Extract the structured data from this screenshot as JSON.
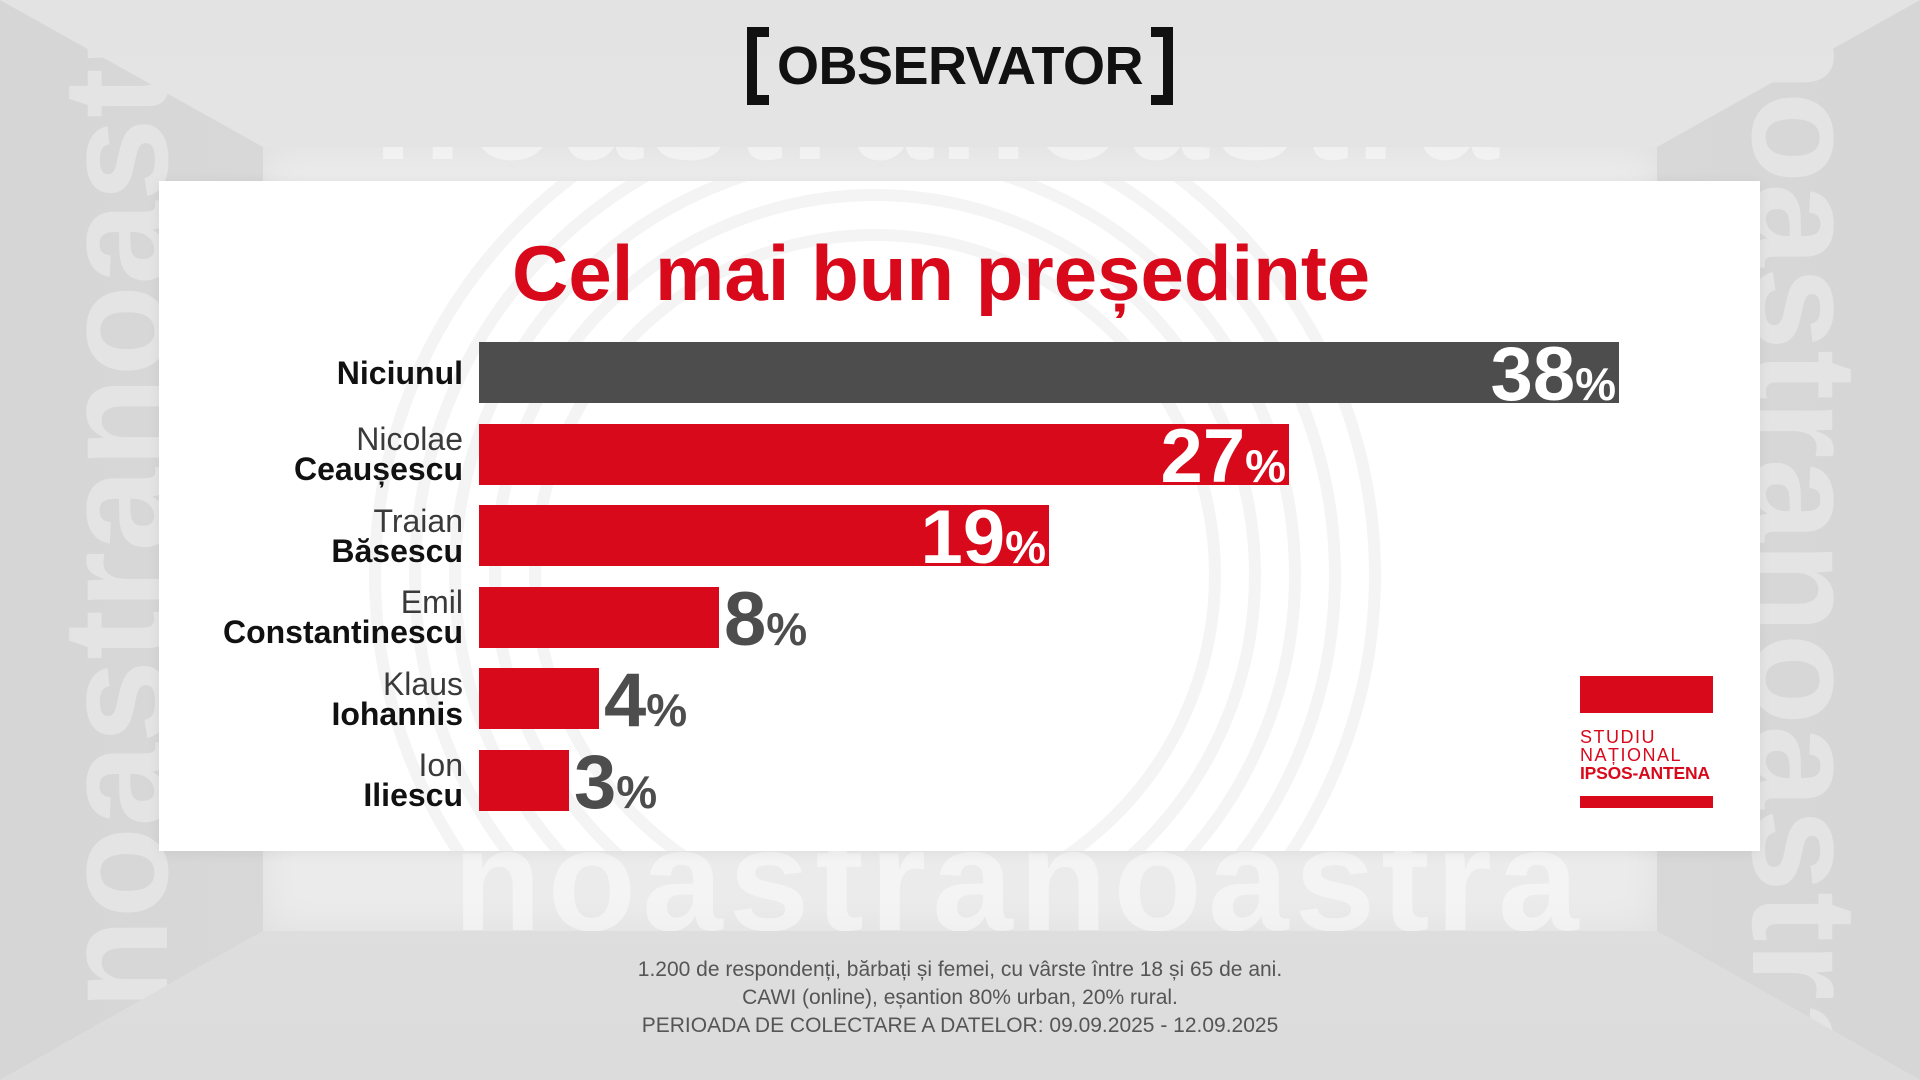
{
  "header": {
    "logo": "OBSERVATOR"
  },
  "watermark": "noastra",
  "chart_data": {
    "type": "bar",
    "orientation": "horizontal",
    "title": "Cel mai bun președinte",
    "categories": [
      "Niciunul",
      "Nicolae Ceaușescu",
      "Traian Băsescu",
      "Emil Constantinescu",
      "Klaus Iohannis",
      "Ion Iliescu"
    ],
    "values": [
      38,
      27,
      19,
      8,
      4,
      3
    ],
    "unit": "%",
    "bar_colors": [
      "#4d4d4d",
      "#d9091c",
      "#d9091c",
      "#d9091c",
      "#d9091c",
      "#d9091c"
    ],
    "grid": false
  },
  "badge": {
    "line1": "STUDIU",
    "line2": "NAȚIONAL",
    "line3": "IPSOS-ANTENA"
  },
  "footer": {
    "lines": [
      "1.200 de respondenți, bărbați și femei, cu vârste între 18 și 65 de ani.",
      "CAWI (online), eșantion 80% urban, 20% rural.",
      "PERIOADA DE COLECTARE A DATELOR: 09.09.2025 - 12.09.2025"
    ]
  },
  "colors": {
    "accent_red": "#d9091c",
    "value_inside": "#ffffff",
    "value_outside": "#4d4d4d",
    "footer_text": "#555555",
    "logo": "#111111"
  }
}
